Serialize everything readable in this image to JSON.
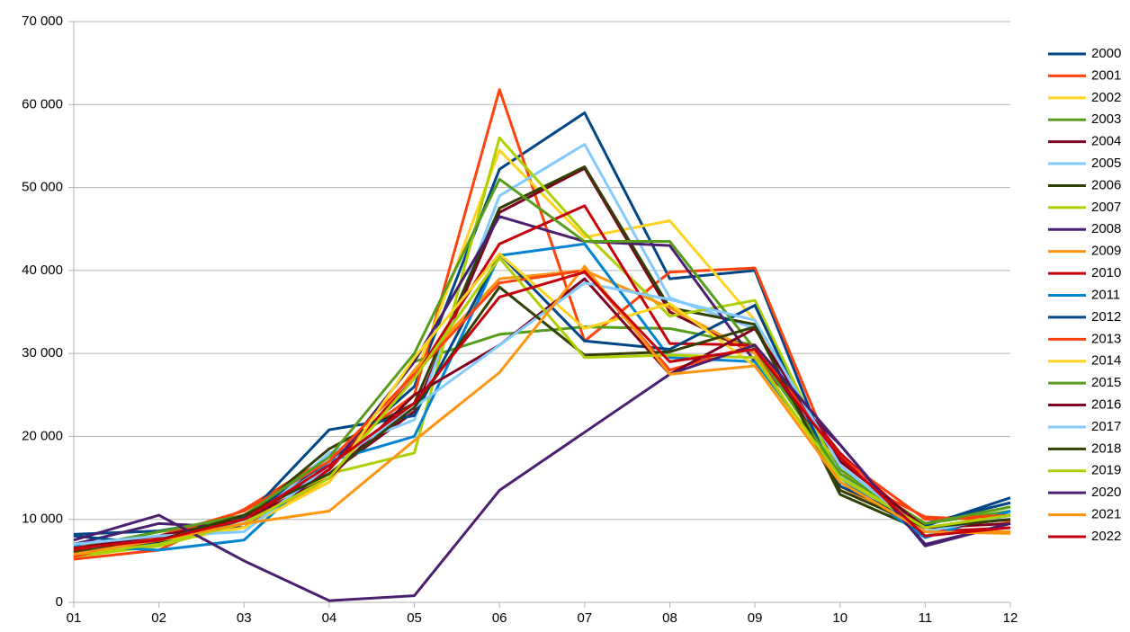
{
  "chart_data": {
    "type": "line",
    "categories": [
      "01",
      "02",
      "03",
      "04",
      "05",
      "06",
      "07",
      "08",
      "09",
      "10",
      "11",
      "12"
    ],
    "ylim": [
      0,
      70000
    ],
    "yticks": [
      0,
      {
        "value": 10000,
        "label": "10 000"
      },
      {
        "value": 20000,
        "label": "20 000"
      },
      {
        "value": 30000,
        "label": "30 000"
      },
      {
        "value": 40000,
        "label": "40 000"
      },
      {
        "value": 50000,
        "label": "50 000"
      },
      {
        "value": 60000,
        "label": "60 000"
      },
      {
        "value": 70000,
        "label": "70 000"
      }
    ],
    "grid": true,
    "legend": "right",
    "series": [
      {
        "name": "2000",
        "color": "#004586",
        "values": [
          8200,
          8600,
          10300,
          17000,
          26000,
          52200,
          59000,
          39000,
          40000,
          14000,
          9200,
          12600
        ]
      },
      {
        "name": "2001",
        "color": "#ff420e",
        "values": [
          5200,
          6300,
          11200,
          17500,
          25000,
          61800,
          31500,
          39800,
          40300,
          15500,
          10300,
          9800
        ]
      },
      {
        "name": "2002",
        "color": "#ffd320",
        "values": [
          6000,
          7200,
          9000,
          15000,
          27000,
          54500,
          44000,
          46000,
          34000,
          16000,
          9000,
          10500
        ]
      },
      {
        "name": "2003",
        "color": "#579d1c",
        "values": [
          6500,
          8500,
          10000,
          16000,
          29000,
          32300,
          33200,
          33000,
          31000,
          16000,
          9500,
          11000
        ]
      },
      {
        "name": "2004",
        "color": "#7e0021",
        "values": [
          6000,
          7000,
          9500,
          15500,
          23000,
          47000,
          52300,
          35000,
          30000,
          17000,
          9000,
          10000
        ]
      },
      {
        "name": "2005",
        "color": "#83caff",
        "values": [
          7000,
          8000,
          9000,
          18000,
          22000,
          49000,
          55200,
          36700,
          33000,
          15500,
          8000,
          10800
        ]
      },
      {
        "name": "2006",
        "color": "#314004",
        "values": [
          6500,
          7200,
          10000,
          18500,
          24000,
          47500,
          52500,
          35500,
          33500,
          13000,
          8500,
          10500
        ]
      },
      {
        "name": "2007",
        "color": "#aecf00",
        "values": [
          5500,
          6800,
          9500,
          15500,
          18000,
          56000,
          44500,
          34500,
          36400,
          15000,
          9500,
          11500
        ]
      },
      {
        "name": "2008",
        "color": "#4b1f6f",
        "values": [
          7000,
          9500,
          9000,
          16000,
          29000,
          46500,
          43500,
          43000,
          29000,
          19000,
          7000,
          9500
        ]
      },
      {
        "name": "2009",
        "color": "#ff950e",
        "values": [
          6000,
          7500,
          9500,
          14500,
          28000,
          39000,
          40000,
          35500,
          30000,
          14000,
          8500,
          8500
        ]
      },
      {
        "name": "2010",
        "color": "#c5000b",
        "values": [
          6200,
          7800,
          10000,
          16000,
          27000,
          43200,
          47800,
          31200,
          31000,
          18000,
          8500,
          9000
        ]
      },
      {
        "name": "2011",
        "color": "#0084d1",
        "values": [
          6800,
          6300,
          7500,
          17000,
          20000,
          41800,
          43200,
          29500,
          29000,
          15000,
          7800,
          11000
        ]
      },
      {
        "name": "2012",
        "color": "#004586",
        "values": [
          8000,
          7000,
          10000,
          20800,
          22500,
          42000,
          31500,
          30500,
          35800,
          14000,
          9500,
          12000
        ]
      },
      {
        "name": "2013",
        "color": "#ff420e",
        "values": [
          5500,
          8000,
          11000,
          17000,
          27500,
          38500,
          40000,
          28000,
          31000,
          17500,
          10000,
          10500
        ]
      },
      {
        "name": "2014",
        "color": "#ffd320",
        "values": [
          6000,
          7500,
          9000,
          14500,
          29500,
          42000,
          33000,
          36000,
          28500,
          15000,
          9000,
          9500
        ]
      },
      {
        "name": "2015",
        "color": "#579d1c",
        "values": [
          6500,
          8500,
          10500,
          17500,
          30000,
          51000,
          43500,
          43500,
          30500,
          15500,
          9500,
          11500
        ]
      },
      {
        "name": "2016",
        "color": "#7e0021",
        "values": [
          6500,
          8000,
          10000,
          15000,
          25000,
          31000,
          39000,
          27500,
          33000,
          17000,
          9000,
          9500
        ]
      },
      {
        "name": "2017",
        "color": "#83caff",
        "values": [
          7000,
          8000,
          8500,
          16500,
          23500,
          31000,
          38500,
          36500,
          34000,
          16500,
          8500,
          10500
        ]
      },
      {
        "name": "2018",
        "color": "#314004",
        "values": [
          6000,
          7500,
          10500,
          15500,
          23500,
          38000,
          29800,
          30200,
          33200,
          13500,
          9000,
          10000
        ]
      },
      {
        "name": "2019",
        "color": "#aecf00",
        "values": [
          5800,
          7000,
          9500,
          15000,
          27000,
          41500,
          29500,
          29800,
          29500,
          15000,
          9000,
          10500
        ]
      },
      {
        "name": "2020",
        "color": "#4b1f6f",
        "values": [
          7500,
          10500,
          5000,
          200,
          800,
          13500,
          20500,
          27500,
          31000,
          19000,
          6800,
          9500
        ]
      },
      {
        "name": "2021",
        "color": "#ff950e",
        "values": [
          5800,
          7500,
          9500,
          11000,
          19500,
          27700,
          40500,
          27500,
          28500,
          14500,
          8500,
          8300
        ]
      },
      {
        "name": "2022",
        "color": "#c5000b",
        "values": [
          6500,
          7500,
          10000,
          16500,
          24000,
          36800,
          39800,
          29000,
          30500,
          17500,
          8000,
          9000
        ]
      }
    ]
  }
}
